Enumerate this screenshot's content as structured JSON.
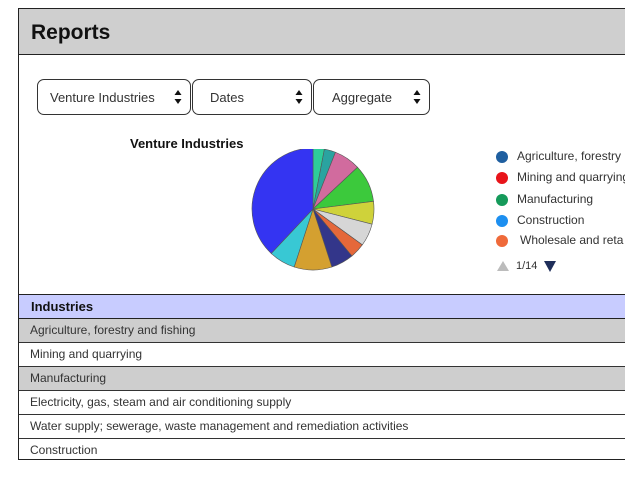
{
  "header": {
    "title": "Reports"
  },
  "filters": [
    {
      "name": "company-select",
      "value": "Venture Industries"
    },
    {
      "name": "dates-select",
      "value": "Dates"
    },
    {
      "name": "aggregate-select",
      "value": "Aggregate"
    }
  ],
  "chart": {
    "title": "Venture Industries",
    "pager": "1/14",
    "legend": [
      {
        "label": "Agriculture, forestry",
        "color": "#1f5fa0"
      },
      {
        "label": "Mining and quarrying",
        "color": "#e8141a"
      },
      {
        "label": "Manufacturing",
        "color": "#159a5a"
      },
      {
        "label": "Construction",
        "color": "#1c8ff0"
      },
      {
        "label": "Wholesale and reta",
        "color": "#ef6a3a"
      }
    ]
  },
  "chart_data": {
    "type": "pie",
    "title": "Venture Industries",
    "slices": [
      {
        "value": 3,
        "color": "#2ecc9a"
      },
      {
        "value": 3,
        "color": "#2aa3a0"
      },
      {
        "value": 7,
        "color": "#d16b9e"
      },
      {
        "value": 10,
        "color": "#3cc93c"
      },
      {
        "value": 6,
        "color": "#cfd23a"
      },
      {
        "value": 6,
        "color": "#d6d6d6"
      },
      {
        "value": 4,
        "color": "#e5683a"
      },
      {
        "value": 6,
        "color": "#33368a"
      },
      {
        "value": 10,
        "color": "#d4a030"
      },
      {
        "value": 7,
        "color": "#38c8d4"
      },
      {
        "value": 38,
        "color": "#3434f2"
      }
    ]
  },
  "table": {
    "header": "Industries",
    "rows": [
      "Agriculture, forestry and fishing",
      "Mining and quarrying",
      "Manufacturing",
      "Electricity, gas, steam and air conditioning supply",
      "Water supply; sewerage, waste management and remediation activities",
      "Construction"
    ]
  }
}
